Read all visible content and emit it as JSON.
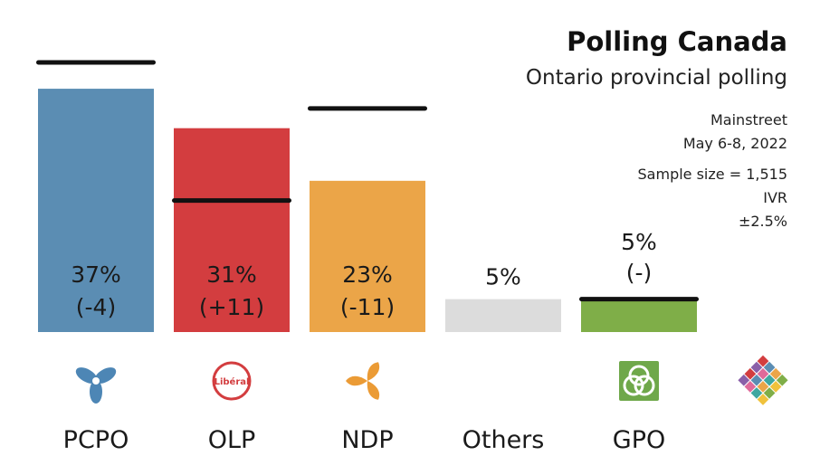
{
  "header": {
    "title": "Polling Canada",
    "subtitle": "Ontario provincial polling",
    "pollster": "Mainstreet",
    "dates": "May 6-8, 2022",
    "sample": "Sample size = 1,515",
    "method": "IVR",
    "margin": "±2.5%"
  },
  "chart_data": {
    "type": "bar",
    "categories": [
      "PCPO",
      "OLP",
      "NDP",
      "Others",
      "GPO"
    ],
    "values": [
      37,
      31,
      23,
      5,
      5
    ],
    "value_labels": [
      "37%",
      "31%",
      "23%",
      "5%",
      "5%"
    ],
    "change_labels": [
      "(-4)",
      "(+11)",
      "(-11)",
      "",
      "(-)"
    ],
    "previous_values": [
      41,
      20,
      34,
      null,
      5
    ],
    "colors": [
      "#5b8db3",
      "#d33d3f",
      "#eba548",
      "#dcdcdc",
      "#7fae48"
    ],
    "icons": [
      "pc-trillium-icon",
      "liberal-logo-icon",
      "ndp-trillium-icon",
      null,
      "green-party-icon"
    ],
    "extra_icon": "polling-canada-logo-icon",
    "title": "Polling Canada",
    "subtitle": "Ontario provincial polling",
    "ylim": [
      0,
      41
    ],
    "grid": false,
    "legend": "none"
  }
}
